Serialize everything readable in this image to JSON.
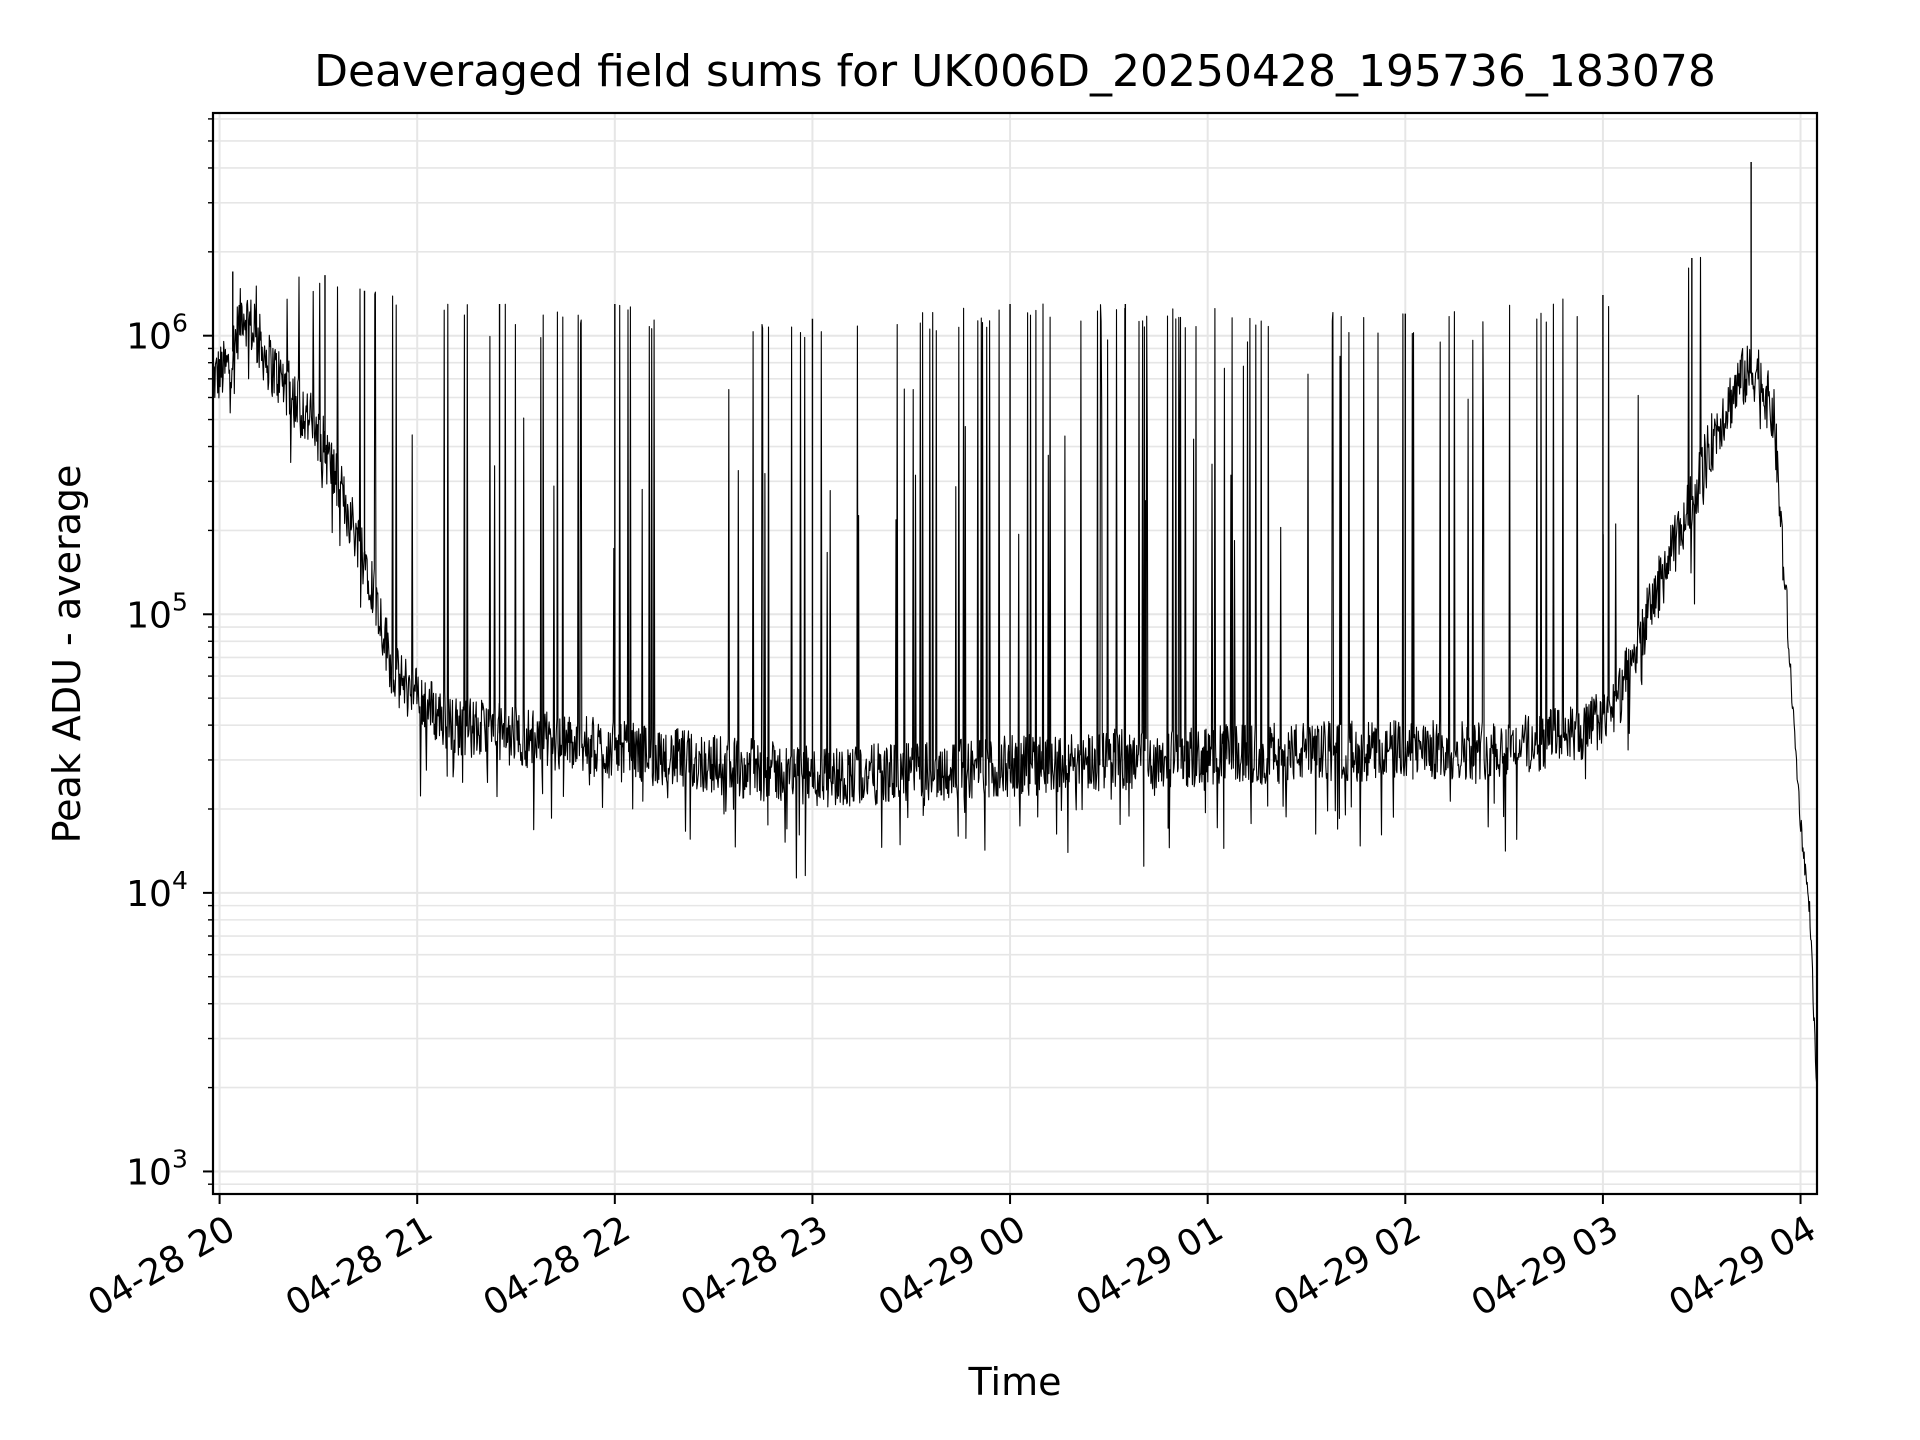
{
  "chart_data": {
    "type": "line",
    "title": "Deaveraged field sums for UK006D_20250428_195736_183078",
    "xlabel": "Time",
    "ylabel": "Peak ADU - average",
    "yscale": "log",
    "grid": true,
    "line_color": "#000000",
    "grid_color": "#e6e6e6",
    "x_range": [
      "2025-04-28 19:58",
      "2025-04-29 04:05"
    ],
    "ylim": [
      830,
      6300000
    ],
    "x_ticks": [
      {
        "time": "2025-04-28 20:00",
        "label": "04-28 20"
      },
      {
        "time": "2025-04-28 21:00",
        "label": "04-28 21"
      },
      {
        "time": "2025-04-28 22:00",
        "label": "04-28 22"
      },
      {
        "time": "2025-04-28 23:00",
        "label": "04-28 23"
      },
      {
        "time": "2025-04-29 00:00",
        "label": "04-29 00"
      },
      {
        "time": "2025-04-29 01:00",
        "label": "04-29 01"
      },
      {
        "time": "2025-04-29 02:00",
        "label": "04-29 02"
      },
      {
        "time": "2025-04-29 03:00",
        "label": "04-29 03"
      },
      {
        "time": "2025-04-29 04:00",
        "label": "04-29 04"
      }
    ],
    "y_ticks": [
      {
        "value": 1000,
        "base": "10",
        "exponent": "3"
      },
      {
        "value": 10000,
        "base": "10",
        "exponent": "4"
      },
      {
        "value": 100000,
        "base": "10",
        "exponent": "5"
      },
      {
        "value": 1000000,
        "base": "10",
        "exponent": "6"
      }
    ],
    "baseline": {
      "time": [
        "2025-04-28 19:58",
        "2025-04-28 20:03",
        "2025-04-28 20:07",
        "2025-04-28 20:15",
        "2025-04-28 20:30",
        "2025-04-28 20:45",
        "2025-04-28 20:53",
        "2025-04-28 21:10",
        "2025-04-28 21:40",
        "2025-04-28 22:30",
        "2025-04-28 23:00",
        "2025-04-28 23:30",
        "2025-04-29 00:30",
        "2025-04-29 01:30",
        "2025-04-29 02:30",
        "2025-04-29 02:55",
        "2025-04-29 03:05",
        "2025-04-29 03:15",
        "2025-04-29 03:25",
        "2025-04-29 03:35",
        "2025-04-29 03:42",
        "2025-04-29 03:47",
        "2025-04-29 03:52",
        "2025-04-29 03:57",
        "2025-04-29 04:00",
        "2025-04-29 04:03",
        "2025-04-29 04:05"
      ],
      "peak_adu": [
        700000,
        780000,
        1250000,
        800000,
        450000,
        150000,
        60000,
        40000,
        35000,
        29000,
        26000,
        27000,
        30000,
        32000,
        33000,
        38000,
        50000,
        110000,
        220000,
        480000,
        700000,
        750000,
        500000,
        60000,
        18000,
        8000,
        1800
      ]
    },
    "spike_peaks": [
      {
        "time": "2025-04-28 20:04",
        "peak_adu": 1700000
      },
      {
        "time": "2025-04-28 20:32",
        "peak_adu": 1650000
      },
      {
        "time": "2025-04-28 20:44",
        "peak_adu": 1450000
      },
      {
        "time": "2025-04-28 21:25",
        "peak_adu": 1300000
      },
      {
        "time": "2025-04-28 22:00",
        "peak_adu": 1300000
      },
      {
        "time": "2025-04-28 23:00",
        "peak_adu": 1150000
      },
      {
        "time": "2025-04-29 00:00",
        "peak_adu": 1300000
      },
      {
        "time": "2025-04-29 00:35",
        "peak_adu": 1300000
      },
      {
        "time": "2025-04-29 02:00",
        "peak_adu": 1200000
      },
      {
        "time": "2025-04-29 03:00",
        "peak_adu": 1400000
      },
      {
        "time": "2025-04-29 03:27",
        "peak_adu": 1900000
      },
      {
        "time": "2025-04-29 03:45",
        "peak_adu": 4200000
      }
    ]
  }
}
